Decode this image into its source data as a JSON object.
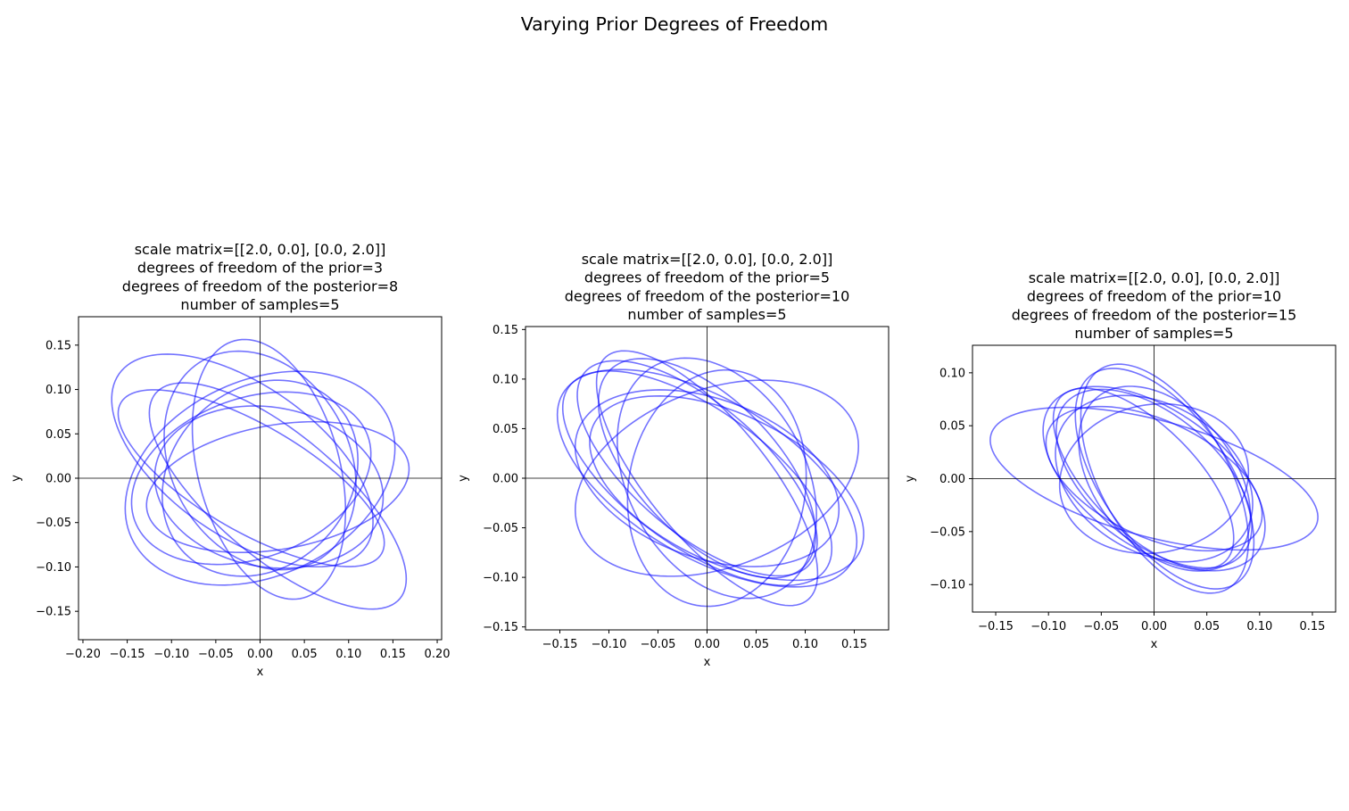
{
  "figure": {
    "title": "Varying Prior Degrees of Freedom"
  },
  "chart_data": [
    {
      "type": "line",
      "title_lines": [
        "scale matrix=[[2.0, 0.0], [0.0, 2.0]]",
        "degrees of freedom of the prior=3",
        "degrees of freedom of the posterior=8",
        "number of samples=5"
      ],
      "xlabel": "x",
      "ylabel": "y",
      "xlim": [
        -0.205,
        0.205
      ],
      "ylim": [
        -0.182,
        0.182
      ],
      "xticks": [
        -0.2,
        -0.15,
        -0.1,
        -0.05,
        0.0,
        0.05,
        0.1,
        0.15,
        0.2
      ],
      "yticks": [
        -0.15,
        -0.1,
        -0.05,
        0.0,
        0.05,
        0.1,
        0.15
      ],
      "color": "#0000ff",
      "ellipses": [
        {
          "cx": -0.02,
          "cy": 0.02,
          "a": 0.17,
          "b": 0.085,
          "angle_deg": -35
        },
        {
          "cx": 0.02,
          "cy": -0.02,
          "a": 0.18,
          "b": 0.07,
          "angle_deg": -40
        },
        {
          "cx": 0.0,
          "cy": 0.0,
          "a": 0.16,
          "b": 0.11,
          "angle_deg": 25
        },
        {
          "cx": 0.01,
          "cy": 0.01,
          "a": 0.15,
          "b": 0.08,
          "angle_deg": -75
        },
        {
          "cx": -0.01,
          "cy": 0.0,
          "a": 0.14,
          "b": 0.09,
          "angle_deg": 20
        },
        {
          "cx": 0.01,
          "cy": -0.01,
          "a": 0.13,
          "b": 0.09,
          "angle_deg": -10
        },
        {
          "cx": 0.0,
          "cy": 0.02,
          "a": 0.13,
          "b": 0.1,
          "angle_deg": -60
        },
        {
          "cx": 0.02,
          "cy": -0.01,
          "a": 0.15,
          "b": 0.07,
          "angle_deg": 10
        },
        {
          "cx": -0.01,
          "cy": 0.0,
          "a": 0.17,
          "b": 0.06,
          "angle_deg": -30
        },
        {
          "cx": 0.0,
          "cy": 0.0,
          "a": 0.12,
          "b": 0.1,
          "angle_deg": 45
        }
      ]
    },
    {
      "type": "line",
      "title_lines": [
        "scale matrix=[[2.0, 0.0], [0.0, 2.0]]",
        "degrees of freedom of the prior=5",
        "degrees of freedom of the posterior=10",
        "number of samples=5"
      ],
      "xlabel": "x",
      "ylabel": "y",
      "xlim": [
        -0.185,
        0.185
      ],
      "ylim": [
        -0.153,
        0.153
      ],
      "xticks": [
        -0.15,
        -0.1,
        -0.05,
        0.0,
        0.05,
        0.1,
        0.15
      ],
      "yticks": [
        -0.15,
        -0.1,
        -0.05,
        0.0,
        0.05,
        0.1,
        0.15
      ],
      "color": "#0000ff",
      "ellipses": [
        {
          "cx": -0.01,
          "cy": 0.0,
          "a": 0.16,
          "b": 0.07,
          "angle_deg": -35
        },
        {
          "cx": 0.0,
          "cy": 0.0,
          "a": 0.17,
          "b": 0.08,
          "angle_deg": -30
        },
        {
          "cx": 0.01,
          "cy": 0.0,
          "a": 0.15,
          "b": 0.09,
          "angle_deg": 20
        },
        {
          "cx": 0.0,
          "cy": 0.01,
          "a": 0.14,
          "b": 0.07,
          "angle_deg": -45
        },
        {
          "cx": 0.02,
          "cy": -0.01,
          "a": 0.15,
          "b": 0.075,
          "angle_deg": -25
        },
        {
          "cx": 0.01,
          "cy": 0.0,
          "a": 0.13,
          "b": 0.09,
          "angle_deg": -60
        },
        {
          "cx": -0.01,
          "cy": 0.01,
          "a": 0.15,
          "b": 0.065,
          "angle_deg": -40
        },
        {
          "cx": 0.01,
          "cy": -0.01,
          "a": 0.12,
          "b": 0.09,
          "angle_deg": 80
        },
        {
          "cx": 0.0,
          "cy": 0.0,
          "a": 0.14,
          "b": 0.08,
          "angle_deg": -20
        },
        {
          "cx": 0.0,
          "cy": 0.0,
          "a": 0.16,
          "b": 0.06,
          "angle_deg": -50
        }
      ]
    },
    {
      "type": "line",
      "title_lines": [
        "scale matrix=[[2.0, 0.0], [0.0, 2.0]]",
        "degrees of freedom of the prior=10",
        "degrees of freedom of the posterior=15",
        "number of samples=5"
      ],
      "xlabel": "x",
      "ylabel": "y",
      "xlim": [
        -0.172,
        0.172
      ],
      "ylim": [
        -0.126,
        0.126
      ],
      "xticks": [
        -0.15,
        -0.1,
        -0.05,
        0.0,
        0.05,
        0.1,
        0.15
      ],
      "yticks": [
        -0.1,
        -0.05,
        0.0,
        0.05,
        0.1
      ],
      "color": "#0000ff",
      "ellipses": [
        {
          "cx": 0.0,
          "cy": 0.0,
          "a": 0.16,
          "b": 0.055,
          "angle_deg": -15
        },
        {
          "cx": 0.0,
          "cy": 0.0,
          "a": 0.12,
          "b": 0.065,
          "angle_deg": -35
        },
        {
          "cx": 0.0,
          "cy": 0.0,
          "a": 0.11,
          "b": 0.06,
          "angle_deg": -40
        },
        {
          "cx": 0.01,
          "cy": 0.0,
          "a": 0.12,
          "b": 0.06,
          "angle_deg": -55
        },
        {
          "cx": 0.0,
          "cy": 0.0,
          "a": 0.1,
          "b": 0.07,
          "angle_deg": -30
        },
        {
          "cx": -0.01,
          "cy": 0.0,
          "a": 0.11,
          "b": 0.05,
          "angle_deg": -45
        },
        {
          "cx": 0.01,
          "cy": 0.0,
          "a": 0.12,
          "b": 0.06,
          "angle_deg": -60
        },
        {
          "cx": 0.0,
          "cy": 0.0,
          "a": 0.09,
          "b": 0.07,
          "angle_deg": 10
        },
        {
          "cx": 0.0,
          "cy": 0.0,
          "a": 0.11,
          "b": 0.055,
          "angle_deg": -25
        },
        {
          "cx": 0.01,
          "cy": 0.0,
          "a": 0.1,
          "b": 0.065,
          "angle_deg": -50
        }
      ]
    }
  ]
}
